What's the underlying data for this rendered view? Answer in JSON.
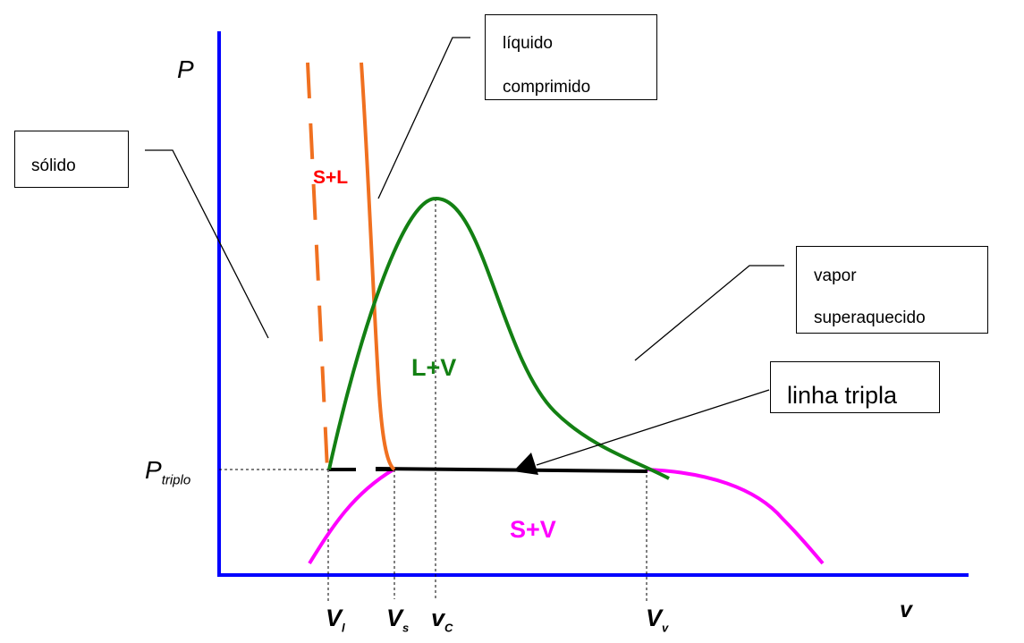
{
  "axes": {
    "y_label": "P",
    "x_label": "v",
    "p_triplo_main": "P",
    "p_triplo_sub": "triplo"
  },
  "tick_labels": [
    {
      "main": "V",
      "sub": "l"
    },
    {
      "main": "V",
      "sub": "s"
    },
    {
      "main": "v",
      "sub": "C"
    },
    {
      "main": "V",
      "sub": "v"
    }
  ],
  "regions": {
    "s_l": "S+L",
    "l_v": "L+V",
    "s_v": "S+V"
  },
  "callouts": {
    "solido": "sólido",
    "liquido_line1": "líquido",
    "liquido_line2": "comprimido",
    "vapor_line1": "vapor",
    "vapor_line2": "superaquecido",
    "linha_tripla": "linha tripla"
  },
  "colors": {
    "axis": "#0000ff",
    "fusion": "#f07020",
    "dome": "#138013",
    "sublimation": "#ff00ff",
    "s_l_label": "#ff0000"
  }
}
